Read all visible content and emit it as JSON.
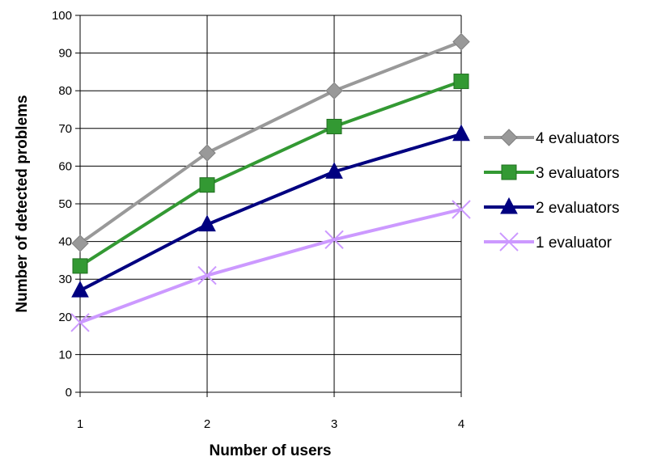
{
  "chart_data": {
    "type": "line",
    "title": "",
    "xlabel": "Number of users",
    "ylabel": "Number of detected problems",
    "x": [
      1,
      2,
      3,
      4
    ],
    "xlim": [
      1,
      4
    ],
    "ylim": [
      0,
      100
    ],
    "y_ticks": [
      "0",
      "10",
      "20",
      "30",
      "40",
      "50",
      "60",
      "70",
      "80",
      "90",
      "100"
    ],
    "x_ticks": [
      "1",
      "2",
      "3",
      "4"
    ],
    "grid": true,
    "legend_position": "right",
    "series": [
      {
        "name": "4 evaluators",
        "values": [
          39.5,
          63.5,
          80.0,
          93.0
        ],
        "color": "#999999",
        "marker": "diamond"
      },
      {
        "name": "3 evaluators",
        "values": [
          33.5,
          55.0,
          70.5,
          82.5
        ],
        "color": "#339933",
        "marker": "square"
      },
      {
        "name": "2 evaluators",
        "values": [
          27.0,
          44.5,
          58.5,
          68.5
        ],
        "color": "#000080",
        "marker": "triangle"
      },
      {
        "name": "1 evaluator",
        "values": [
          18.5,
          31.0,
          40.5,
          48.5
        ],
        "color": "#CC99FF",
        "marker": "x"
      }
    ]
  }
}
